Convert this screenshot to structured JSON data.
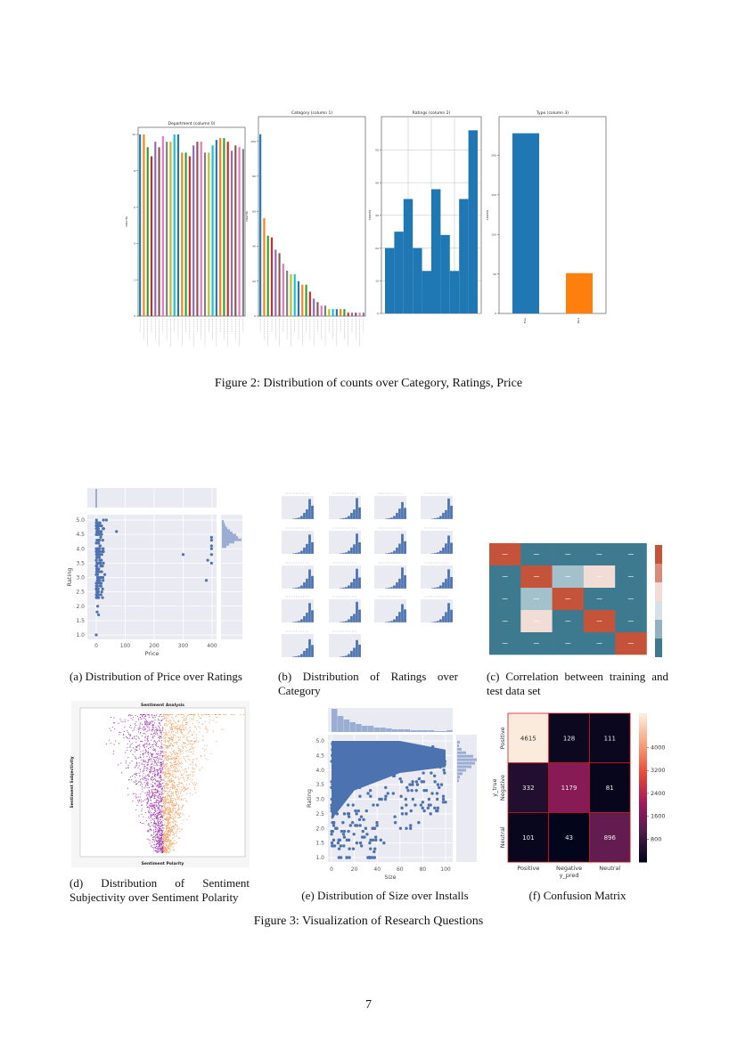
{
  "figure2": {
    "caption": "Figure 2: Distribution of counts over Category, Ratings, Price",
    "chart_data": [
      {
        "type": "bar",
        "title": "Department (column 0)",
        "ylabel": "counts",
        "ylim": [
          0,
          10
        ],
        "yticks": [
          "0",
          "2",
          "4",
          "6",
          "8",
          "10"
        ],
        "values": [
          10,
          10,
          9.3,
          8.8,
          9.6,
          9.3,
          9.9,
          9.6,
          9.6,
          10,
          10,
          9,
          9,
          8.8,
          9.4,
          9.6,
          9.6,
          9,
          9,
          9.4,
          9.7,
          9.8,
          9.8,
          9.6,
          9.1,
          9.4,
          9.3,
          9.2
        ]
      },
      {
        "type": "bar",
        "title": "Category (column 1)",
        "ylabel": "counts",
        "ylim": [
          0,
          110
        ],
        "yticks": [
          "0",
          "20",
          "40",
          "60",
          "80",
          "100"
        ],
        "values": [
          104,
          56,
          46,
          45,
          38,
          36,
          30,
          26,
          24,
          24,
          20,
          18,
          18,
          14,
          10,
          8,
          6,
          6,
          4,
          4,
          4,
          4,
          4,
          2,
          2,
          2,
          2,
          2
        ]
      },
      {
        "type": "bar",
        "title": "Ratings (column 2)",
        "ylabel": "counts",
        "ylim": [
          0,
          58
        ],
        "yticks": [
          "0",
          "10",
          "20",
          "30",
          "40",
          "50"
        ],
        "grid": true,
        "values": [
          20,
          25,
          35,
          20,
          13,
          38,
          24,
          13,
          35,
          56
        ]
      },
      {
        "type": "bar",
        "title": "Type (column 3)",
        "ylabel": "counts",
        "ylim": [
          0,
          240
        ],
        "yticks": [
          "0",
          "50",
          "100",
          "150",
          "200"
        ],
        "categories": [
          "Free",
          "Paid"
        ],
        "values": [
          228,
          51
        ],
        "colors": [
          "#1f77b4",
          "#ff7f0e"
        ]
      }
    ]
  },
  "figure3": {
    "caption": "Figure 3: Visualization of Research Questions",
    "panels": {
      "a": {
        "caption": "(a) Distribution of Price over Ratings",
        "chart_data": {
          "type": "scatter",
          "xlabel": "Price",
          "ylabel": "Rating",
          "xlim": [
            -10,
            410
          ],
          "ylim": [
            0.9,
            5.1
          ],
          "xticks": [
            "0",
            "100",
            "200",
            "300",
            "400"
          ],
          "yticks": [
            "1.0",
            "1.5",
            "2.0",
            "2.5",
            "3.0",
            "3.5",
            "4.0",
            "4.5",
            "5.0"
          ],
          "outliers": [
            [
              70,
              4.6
            ],
            [
              300,
              3.8
            ],
            [
              380,
              2.9
            ],
            [
              385,
              3.6
            ],
            [
              398,
              3.5
            ],
            [
              398,
              3.8
            ],
            [
              398,
              4.0
            ],
            [
              398,
              4.1
            ],
            [
              398,
              4.3
            ],
            [
              398,
              4.4
            ],
            [
              0,
              1.0
            ],
            [
              5,
              2.0
            ],
            [
              3,
              1.8
            ],
            [
              8,
              1.7
            ],
            [
              25,
              5.0
            ],
            [
              35,
              5.0
            ]
          ]
        }
      },
      "b": {
        "caption": "(b) Distribution of Ratings over Category",
        "chart_data": {
          "type": "bar",
          "panels": 18
        }
      },
      "c": {
        "caption": "(c) Correlation between training and test data set",
        "chart_data": {
          "type": "heatmap",
          "matrix": [
            [
              1,
              -0.6,
              -0.6,
              -0.6,
              -0.6
            ],
            [
              -0.6,
              1,
              0.1,
              0.45,
              -0.6
            ],
            [
              -0.6,
              0.1,
              1,
              -0.6,
              -0.6
            ],
            [
              -0.6,
              0.45,
              -0.6,
              1,
              -0.6
            ],
            [
              -0.6,
              -0.6,
              -0.6,
              -0.6,
              1
            ]
          ]
        }
      },
      "d": {
        "caption": "(d) Distribution of Sentiment Subjectivity over Sentiment Polarity",
        "chart_data": {
          "type": "scatter",
          "title": "Sentiment Analysis",
          "xlabel": "Sentiment Polarity",
          "ylabel": "Sentiment Subjectivity",
          "xlim": [
            -1,
            1
          ],
          "ylim": [
            0,
            1
          ],
          "series_colors": {
            "negative": "#a23cb4",
            "positive": "#f4a261"
          }
        }
      },
      "e": {
        "caption": "(e) Distribution of Size over Installs",
        "chart_data": {
          "type": "scatter",
          "xlabel": "Size",
          "ylabel": "Rating",
          "xlim": [
            -5,
            105
          ],
          "ylim": [
            0.9,
            5.1
          ],
          "xticks": [
            "0",
            "20",
            "40",
            "60",
            "80",
            "100"
          ],
          "yticks": [
            "1.0",
            "1.5",
            "2.0",
            "2.5",
            "3.0",
            "3.5",
            "4.0",
            "4.5",
            "5.0"
          ]
        }
      },
      "f": {
        "caption": "(f) Confusion Matrix",
        "chart_data": {
          "type": "heatmap",
          "xlabel": "y_pred",
          "ylabel": "y_true",
          "labels": [
            "Positive",
            "Negative",
            "Neutral"
          ],
          "matrix": [
            [
              4615,
              128,
              111
            ],
            [
              332,
              1179,
              81
            ],
            [
              101,
              43,
              896
            ]
          ],
          "colorbar_ticks": [
            "800",
            "1600",
            "2400",
            "3200",
            "4000"
          ]
        }
      }
    }
  },
  "page_number": "7"
}
